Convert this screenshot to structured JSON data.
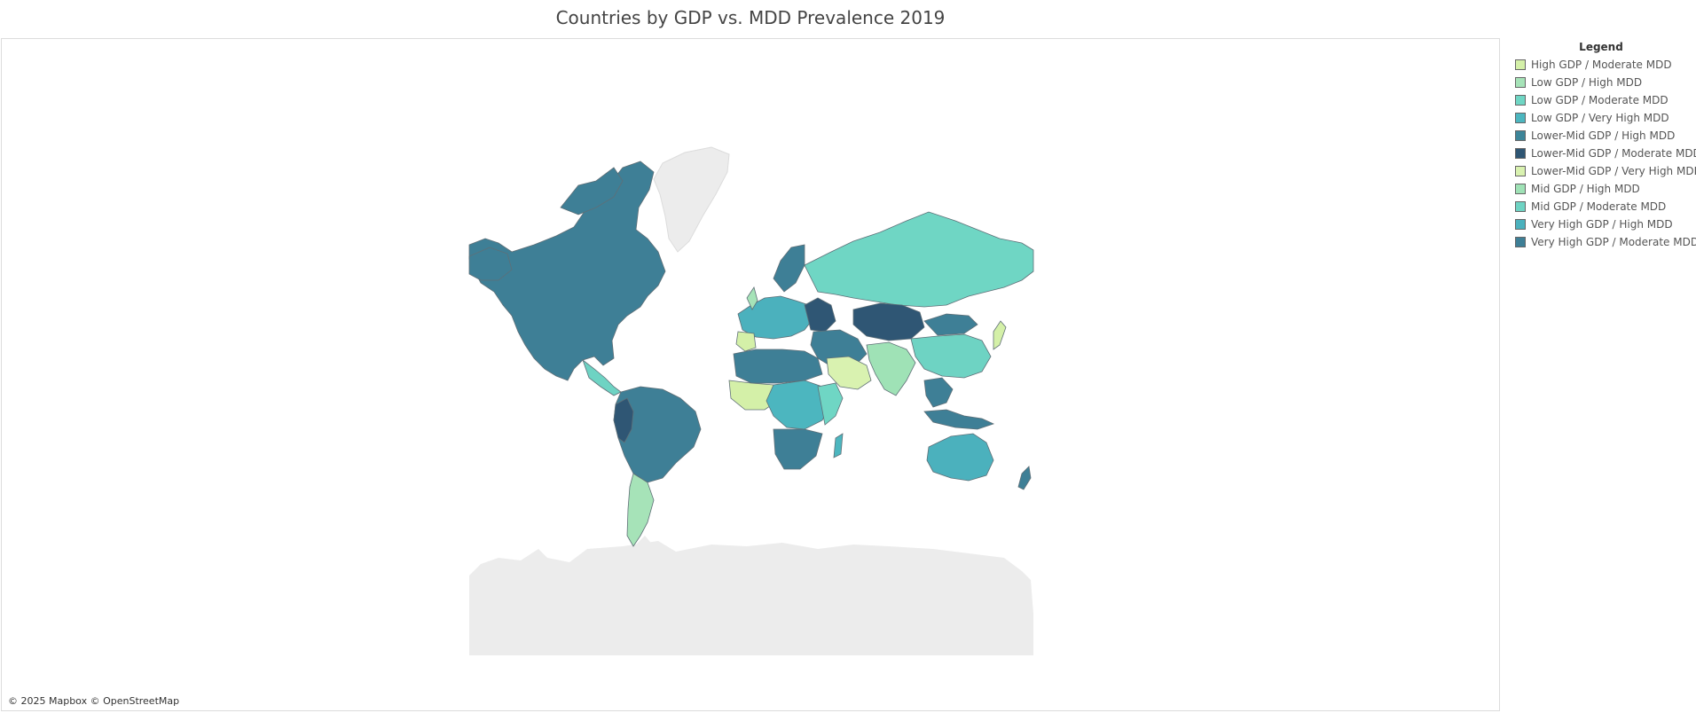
{
  "title": "Countries by GDP vs. MDD Prevalence 2019",
  "attribution": "© 2025 Mapbox © OpenStreetMap",
  "legend": {
    "title": "Legend",
    "items": [
      {
        "label": "High GDP / Moderate MDD",
        "color": "#d4f0a8"
      },
      {
        "label": "Low GDP / High MDD",
        "color": "#a6e3b8"
      },
      {
        "label": "Low GDP / Moderate MDD",
        "color": "#6fd6c4"
      },
      {
        "label": "Low GDP / Very High MDD",
        "color": "#4cb6bf"
      },
      {
        "label": "Lower-Mid GDP / High MDD",
        "color": "#3d8599"
      },
      {
        "label": "Lower-Mid GDP / Moderate MDD",
        "color": "#2f5674"
      },
      {
        "label": "Lower-Mid GDP / Very High MDD",
        "color": "#d9f2b0"
      },
      {
        "label": "Mid GDP / High MDD",
        "color": "#9fe2b6"
      },
      {
        "label": "Mid GDP / Moderate MDD",
        "color": "#6ed3c3"
      },
      {
        "label": "Very High GDP / High MDD",
        "color": "#4bb1bd"
      },
      {
        "label": "Very High GDP / Moderate MDD",
        "color": "#3e7f96"
      }
    ]
  },
  "map": {
    "land_color": "#ececec",
    "border_color": "#5f6f77"
  }
}
